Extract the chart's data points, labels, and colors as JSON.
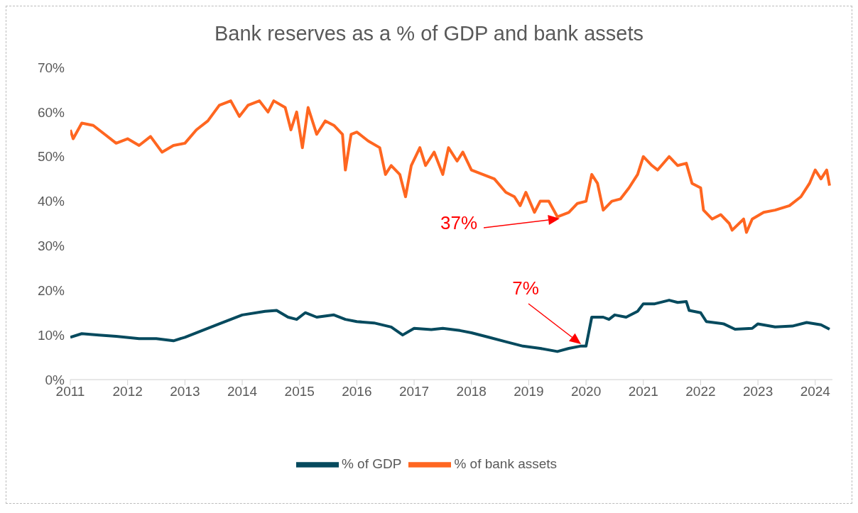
{
  "chart_data": {
    "type": "line",
    "title": "Bank reserves as a % of GDP and bank assets",
    "xlim": [
      2011,
      2024.3
    ],
    "xticks": [
      2011,
      2012,
      2013,
      2014,
      2015,
      2016,
      2017,
      2018,
      2019,
      2020,
      2021,
      2022,
      2023,
      2024
    ],
    "ylim": [
      0,
      70
    ],
    "yticks": [
      {
        "value": 0,
        "label": "0%"
      },
      {
        "value": 10,
        "label": "10%"
      },
      {
        "value": 20,
        "label": "20%"
      },
      {
        "value": 30,
        "label": "30%"
      },
      {
        "value": 40,
        "label": "40%"
      },
      {
        "value": 50,
        "label": "50%"
      },
      {
        "value": 60,
        "label": "60%"
      },
      {
        "value": 70,
        "label": "70%"
      }
    ],
    "grid": false,
    "legend": "bottom",
    "marker": "none",
    "line_style": "solid",
    "series": [
      {
        "name": "% of GDP",
        "color": "#064a5e",
        "x": [
          2011.0,
          2011.2,
          2011.5,
          2011.8,
          2012.2,
          2012.5,
          2012.8,
          2013.0,
          2013.3,
          2013.6,
          2013.8,
          2014.0,
          2014.4,
          2014.6,
          2014.8,
          2014.95,
          2015.1,
          2015.3,
          2015.6,
          2015.8,
          2016.0,
          2016.3,
          2016.6,
          2016.8,
          2017.0,
          2017.3,
          2017.5,
          2017.8,
          2018.0,
          2018.3,
          2018.6,
          2018.9,
          2019.2,
          2019.5,
          2019.7,
          2019.9,
          2020.0,
          2020.1,
          2020.3,
          2020.4,
          2020.5,
          2020.7,
          2020.9,
          2021.0,
          2021.2,
          2021.45,
          2021.6,
          2021.75,
          2021.8,
          2022.0,
          2022.1,
          2022.4,
          2022.6,
          2022.9,
          2023.0,
          2023.3,
          2023.6,
          2023.85,
          2024.1,
          2024.25
        ],
        "values": [
          9.5,
          10.3,
          10,
          9.7,
          9.2,
          9.2,
          8.7,
          9.5,
          11,
          12.5,
          13.5,
          14.5,
          15.3,
          15.5,
          14,
          13.5,
          15,
          14,
          14.5,
          13.5,
          13,
          12.7,
          11.8,
          10,
          11.5,
          11.2,
          11.5,
          11,
          10.5,
          9.5,
          8.5,
          7.5,
          7,
          6.3,
          7,
          7.5,
          7.5,
          14,
          14,
          13.5,
          14.5,
          14,
          15.3,
          17,
          17,
          17.8,
          17.3,
          17.5,
          15.5,
          15,
          13,
          12.5,
          11.3,
          11.5,
          12.5,
          11.8,
          12,
          12.8,
          12.3,
          11.3
        ]
      },
      {
        "name": "% of bank assets",
        "color": "#ff6620",
        "x": [
          2011.0,
          2011.05,
          2011.2,
          2011.4,
          2011.6,
          2011.8,
          2012.0,
          2012.2,
          2012.4,
          2012.6,
          2012.8,
          2013.0,
          2013.2,
          2013.4,
          2013.6,
          2013.8,
          2013.95,
          2014.1,
          2014.3,
          2014.45,
          2014.55,
          2014.75,
          2014.85,
          2014.95,
          2015.05,
          2015.15,
          2015.3,
          2015.45,
          2015.6,
          2015.75,
          2015.8,
          2015.9,
          2016.0,
          2016.2,
          2016.4,
          2016.5,
          2016.6,
          2016.75,
          2016.85,
          2016.95,
          2017.1,
          2017.2,
          2017.35,
          2017.5,
          2017.6,
          2017.75,
          2017.85,
          2018.0,
          2018.2,
          2018.4,
          2018.6,
          2018.75,
          2018.85,
          2018.95,
          2019.1,
          2019.2,
          2019.35,
          2019.5,
          2019.7,
          2019.85,
          2020.0,
          2020.1,
          2020.2,
          2020.3,
          2020.45,
          2020.6,
          2020.75,
          2020.9,
          2021.0,
          2021.15,
          2021.25,
          2021.45,
          2021.6,
          2021.75,
          2021.85,
          2022.0,
          2022.05,
          2022.2,
          2022.35,
          2022.5,
          2022.55,
          2022.75,
          2022.8,
          2022.9,
          2023.1,
          2023.3,
          2023.55,
          2023.75,
          2023.9,
          2024.0,
          2024.1,
          2024.2,
          2024.25
        ],
        "values": [
          56,
          54,
          57.5,
          57,
          55,
          53,
          54,
          52.5,
          54.5,
          51,
          52.5,
          53,
          56,
          58,
          61.5,
          62.5,
          59,
          61.5,
          62.5,
          60,
          62.5,
          61,
          56,
          60,
          52,
          61,
          55,
          58,
          57,
          55,
          47,
          55,
          55.5,
          53.5,
          52,
          46,
          48,
          46,
          41,
          48,
          52,
          48,
          51,
          46,
          52,
          49,
          51,
          47,
          46,
          45,
          42,
          41,
          39,
          42,
          37.5,
          40,
          40,
          36.5,
          37.5,
          39.5,
          40,
          46,
          44,
          38,
          40,
          40.5,
          43,
          46,
          50,
          48,
          47,
          50,
          48,
          48.5,
          44,
          43,
          38,
          36,
          37,
          35,
          33.5,
          36,
          33,
          36,
          37.5,
          38,
          39,
          41,
          44,
          47,
          45,
          47,
          43.5
        ]
      }
    ],
    "annotations": [
      "37%",
      "7%"
    ]
  }
}
